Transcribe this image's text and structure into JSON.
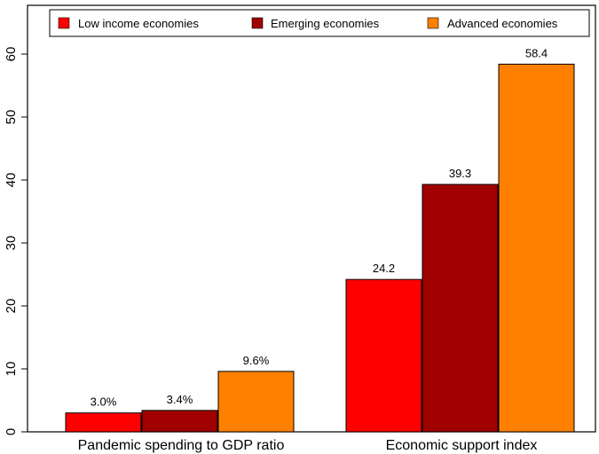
{
  "chart_data": {
    "type": "bar",
    "categories": [
      "Pandemic spending to GDP ratio",
      "Economic support index"
    ],
    "series": [
      {
        "name": "Low income economies",
        "values": [
          3.0,
          24.2
        ],
        "labels": [
          "3.0%",
          "24.2"
        ],
        "color": "#ff0000"
      },
      {
        "name": "Emerging economies",
        "values": [
          3.4,
          39.3
        ],
        "labels": [
          "3.4%",
          "39.3"
        ],
        "color": "#a00000"
      },
      {
        "name": "Advanced economies",
        "values": [
          9.6,
          58.4
        ],
        "labels": [
          "9.6%",
          "58.4"
        ],
        "color": "#ff8000"
      }
    ],
    "title": "",
    "xlabel": "",
    "ylabel": "",
    "ylim": [
      0,
      65
    ],
    "yticks": [
      "0",
      "10",
      "20",
      "30",
      "40",
      "50",
      "60"
    ],
    "grid": false,
    "legend_position": "top"
  }
}
